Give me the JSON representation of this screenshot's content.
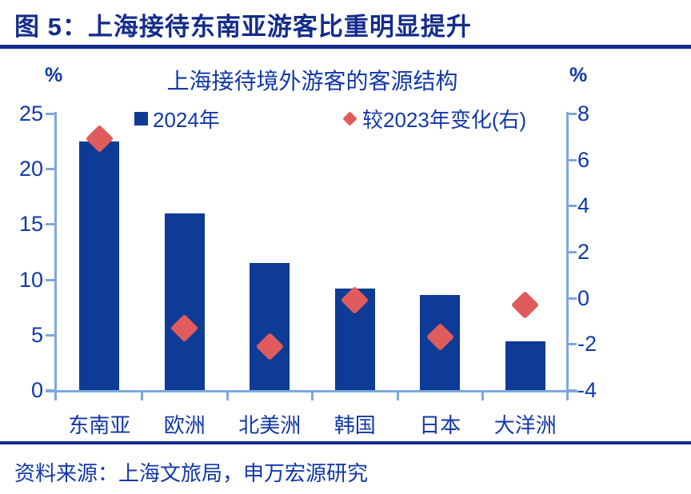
{
  "figure": {
    "caption": "图 5：上海接待东南亚游客比重明显提升",
    "source": "资料来源：上海文旅局，申万宏源研究"
  },
  "chart_data": {
    "type": "bar",
    "title": "上海接待境外游客的客源结构",
    "categories": [
      "东南亚",
      "欧洲",
      "北美洲",
      "韩国",
      "日本",
      "大洋洲"
    ],
    "series": [
      {
        "name": "2024年",
        "type": "bar",
        "axis": "left",
        "values": [
          22.5,
          16.0,
          11.5,
          9.2,
          8.6,
          4.4
        ]
      },
      {
        "name": "较2023年变化(右)",
        "type": "scatter",
        "marker": "diamond",
        "axis": "right",
        "values": [
          6.9,
          -1.3,
          -2.1,
          -0.1,
          -1.7,
          -0.3
        ]
      }
    ],
    "left_axis": {
      "unit": "%",
      "min": 0,
      "max": 25,
      "ticks": [
        0,
        5,
        10,
        15,
        20,
        25
      ]
    },
    "right_axis": {
      "unit": "%",
      "min": -4,
      "max": 8,
      "ticks": [
        -4,
        -2,
        0,
        2,
        4,
        6,
        8
      ]
    },
    "legend_position": "top",
    "grid": false,
    "colors": {
      "bar": "#0D3B96",
      "marker": "#E05C5C",
      "axis_line": "#7FA8DC",
      "text": "#1238A8",
      "caption": "#142C8C"
    }
  }
}
